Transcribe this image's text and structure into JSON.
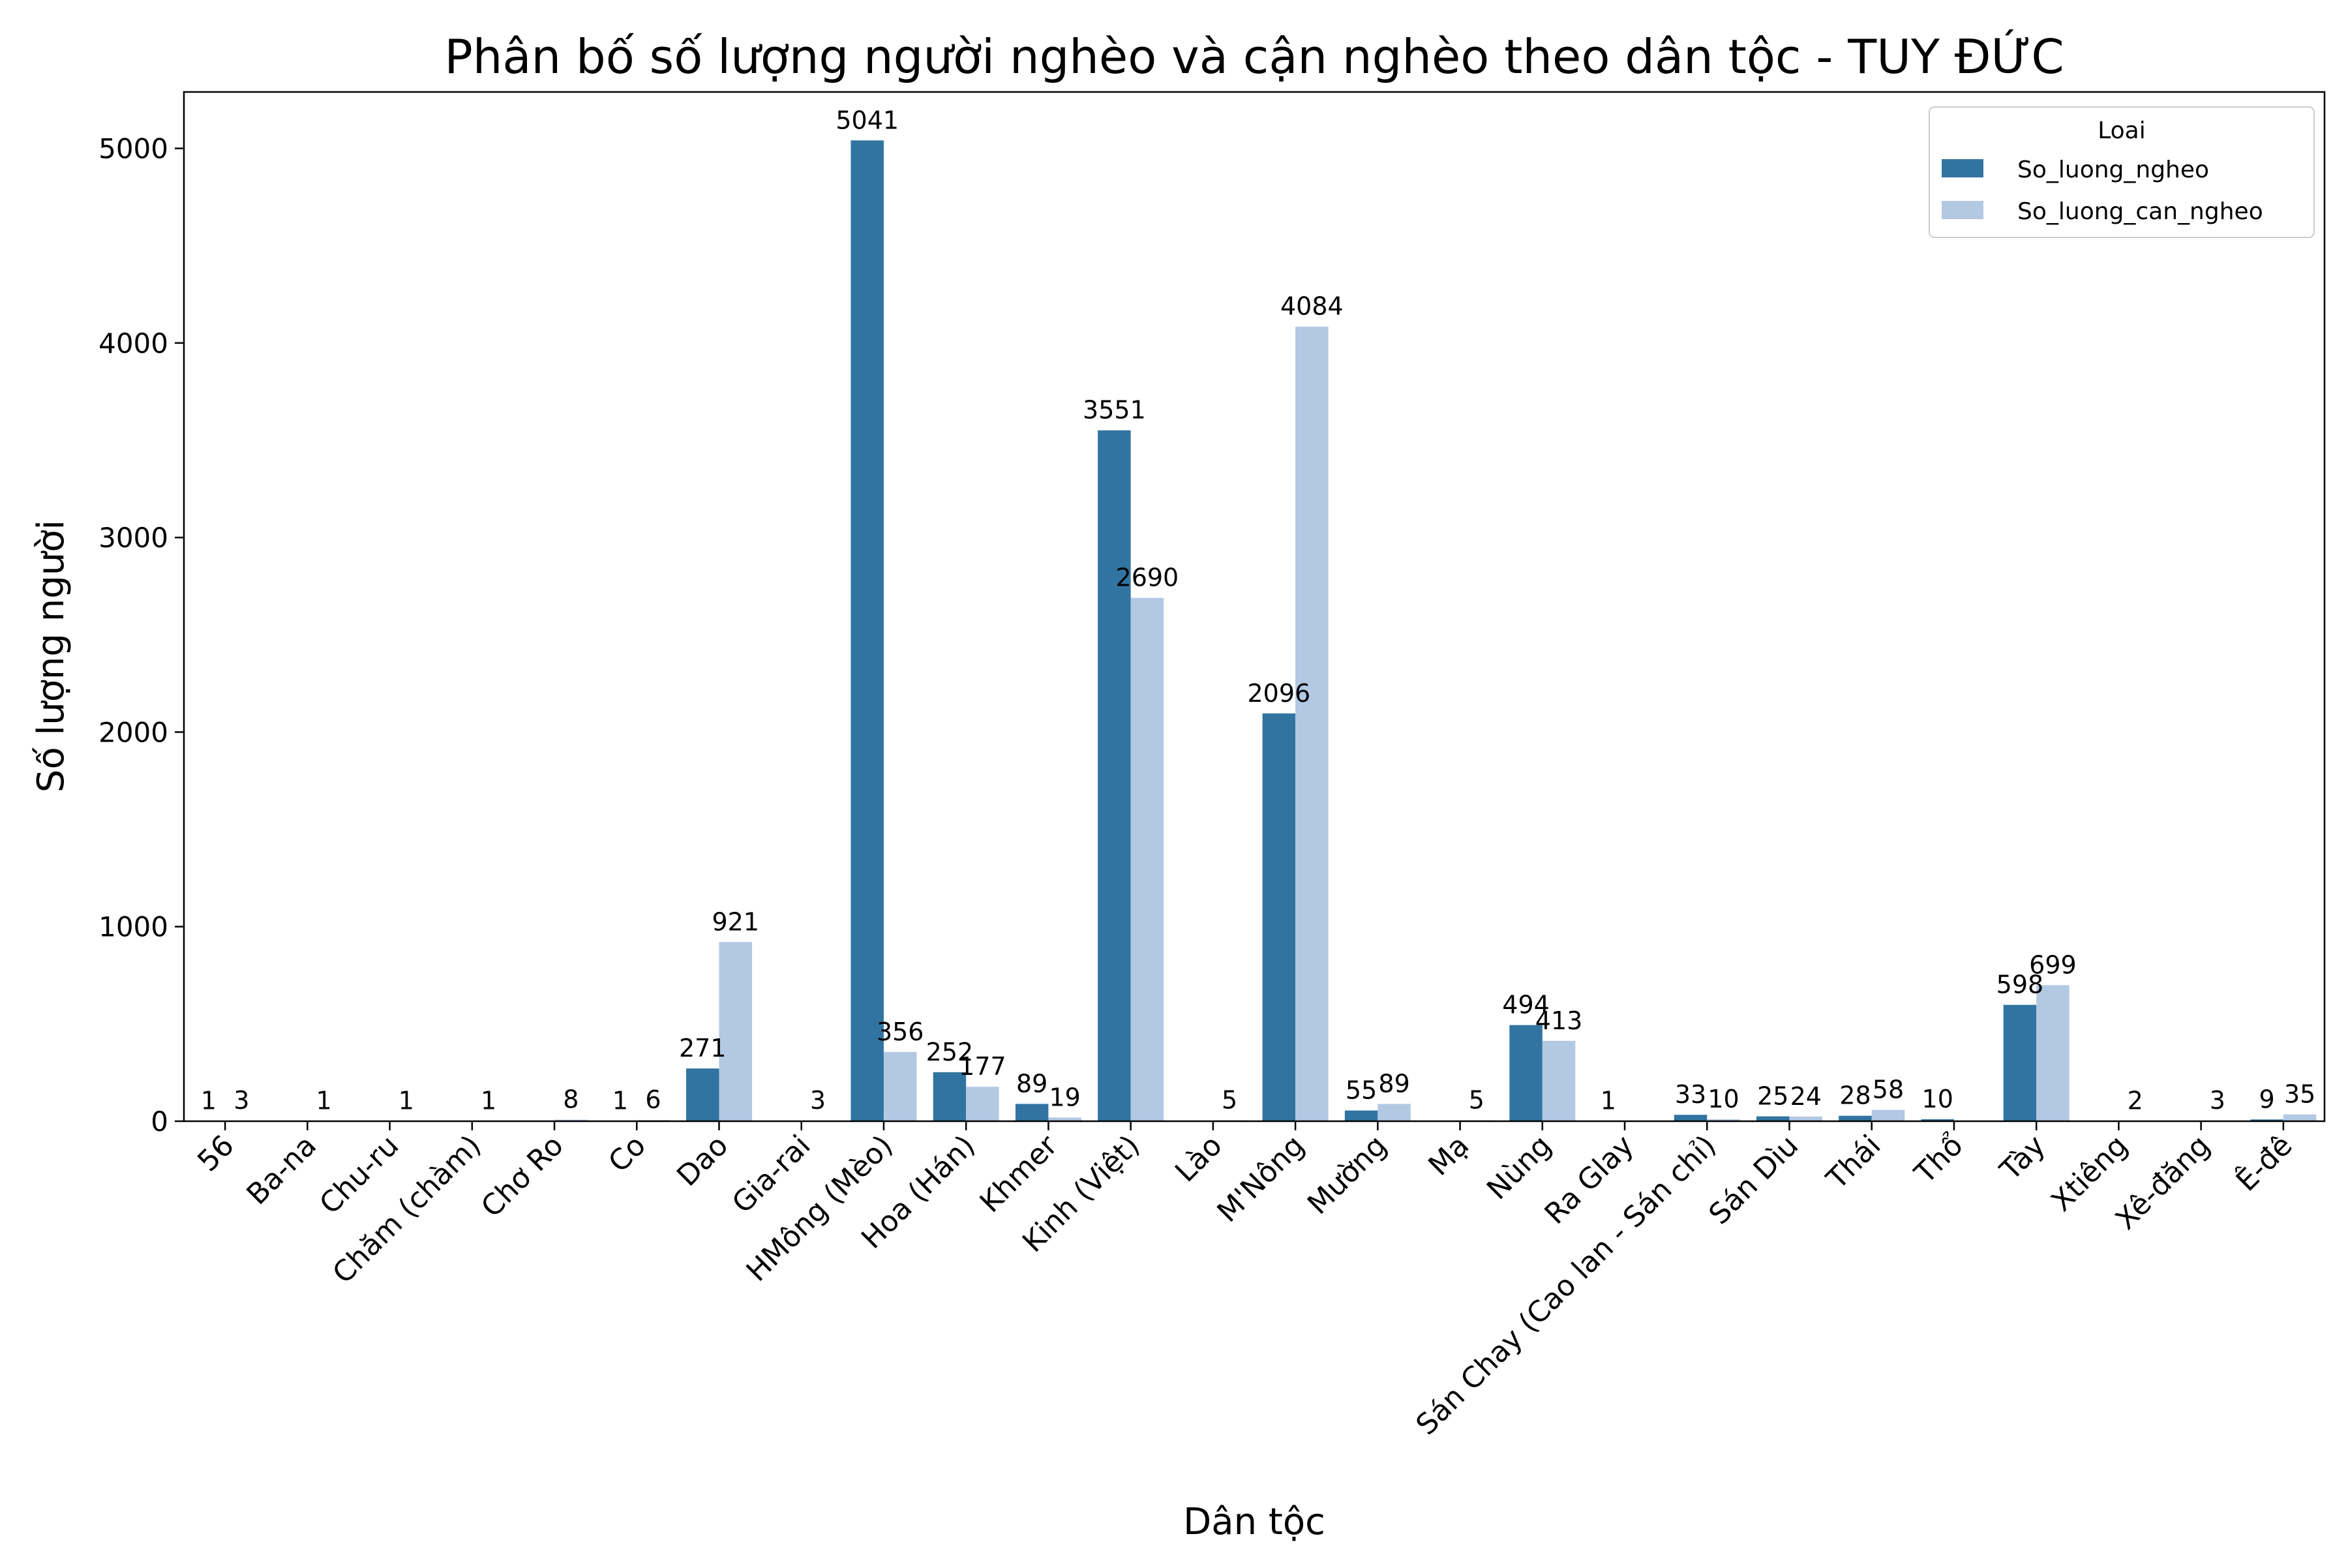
{
  "chart_data": {
    "type": "bar",
    "title": "Phân bố số lượng người nghèo và cận nghèo theo dân tộc - TUY ĐỨC",
    "xlabel": "Dân tộc",
    "ylabel": "Số lượng người",
    "ylim": [
      0,
      5290
    ],
    "yticks": [
      0,
      1000,
      2000,
      3000,
      4000,
      5000
    ],
    "grid": false,
    "legend": {
      "title": "Loai",
      "position": "top-right"
    },
    "categories": [
      "56",
      "Ba-na",
      "Chu-ru",
      "Chăm (chàm)",
      "Chơ Ro",
      "Co",
      "Dao",
      "Gia-rai",
      "HMông (Mèo)",
      "Hoa (Hán)",
      "Khmer",
      "Kinh (Việt)",
      "Lào",
      "M'Nông",
      "Mường",
      "Mạ",
      "Nùng",
      "Ra Glay",
      "Sán Chay (Cao lan - Sán chỉ)",
      "Sán Dìu",
      "Thái",
      "Thổ",
      "Tày",
      "Xtiêng",
      "Xê-đăng",
      "Ê-đê"
    ],
    "series": [
      {
        "name": "So_luong_ngheo",
        "color": "#3274a1",
        "values": [
          1,
          null,
          null,
          null,
          null,
          1,
          271,
          null,
          5041,
          252,
          89,
          3551,
          null,
          2096,
          55,
          null,
          494,
          1,
          33,
          25,
          28,
          10,
          598,
          null,
          null,
          9
        ]
      },
      {
        "name": "So_luong_can_ngheo",
        "color": "#b2c8e3",
        "values": [
          3,
          1,
          1,
          1,
          8,
          6,
          921,
          3,
          356,
          177,
          19,
          2690,
          5,
          4084,
          89,
          5,
          413,
          null,
          10,
          24,
          58,
          null,
          699,
          2,
          3,
          35
        ]
      }
    ]
  }
}
